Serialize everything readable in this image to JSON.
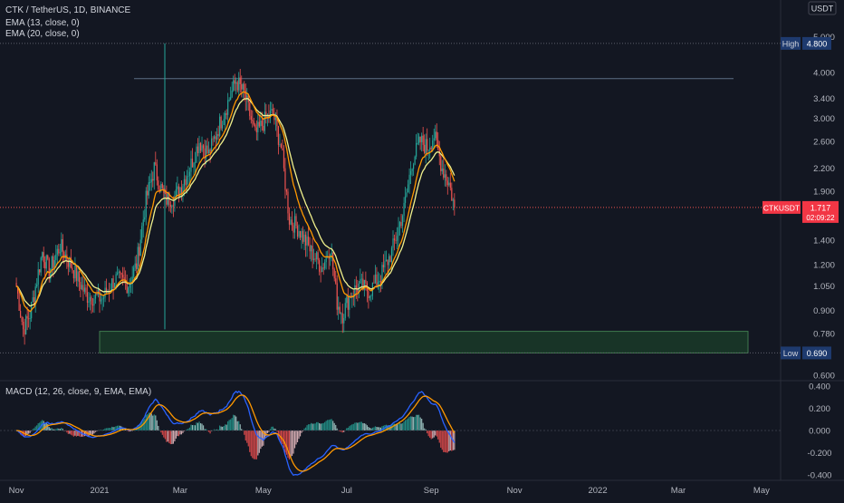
{
  "header": {
    "symbol_line": "CTK / TetherUS, 1D, BINANCE",
    "ema13_label": "EMA (13, close, 0)",
    "ema20_label": "EMA (20, close, 0)",
    "macd_label": "MACD (12, 26, close, 9, EMA, EMA)"
  },
  "price_axis": {
    "currency": "USDT",
    "ticks": [
      "6.000",
      "5.000",
      "4.000",
      "3.400",
      "3.000",
      "2.600",
      "2.200",
      "1.900",
      "1.400",
      "1.200",
      "1.050",
      "0.900",
      "0.780",
      "0.600"
    ],
    "high_label": "High",
    "high_value": "4.800",
    "low_label": "Low",
    "low_value": "0.690",
    "current_symbol": "CTKUSDT",
    "current_value": "1.717",
    "countdown": "02:09:22"
  },
  "macd_axis": {
    "ticks": [
      "0.400",
      "0.200",
      "0.000",
      "-0.200",
      "-0.400"
    ]
  },
  "time_axis": {
    "ticks": [
      "Nov",
      "2021",
      "Mar",
      "May",
      "Jul",
      "Sep",
      "Nov",
      "2022",
      "Mar",
      "May"
    ]
  },
  "colors": {
    "background": "#131722",
    "up_candle": "#26a69a",
    "down_candle": "#ef5350",
    "ema13": "#ff9800",
    "ema20": "#f0f08c",
    "macd_line": "#2962ff",
    "signal_line": "#ff9800",
    "support_zone": "#1e4d2b",
    "current_price_label": "#f23645",
    "high_low_label": "#1e3a6e"
  },
  "chart_data": [
    {
      "type": "candlestick",
      "title": "CTK / TetherUS, 1D, BINANCE",
      "y_scale": "log",
      "ylim": [
        0.58,
        6.3
      ],
      "x_range": [
        "2020-10-20",
        "2022-05-15"
      ],
      "series": [
        {
          "name": "EMA (13, close, 0)",
          "kind": "line"
        },
        {
          "name": "EMA (20, close, 0)",
          "kind": "line"
        }
      ],
      "close_anchors": [
        {
          "date": "2020-11-01",
          "close": 1.05
        },
        {
          "date": "2020-11-06",
          "close": 0.8
        },
        {
          "date": "2020-11-11",
          "close": 0.88
        },
        {
          "date": "2020-11-20",
          "close": 1.3
        },
        {
          "date": "2020-11-25",
          "close": 1.15
        },
        {
          "date": "2020-12-03",
          "close": 1.35
        },
        {
          "date": "2020-12-12",
          "close": 1.18
        },
        {
          "date": "2020-12-22",
          "close": 0.99
        },
        {
          "date": "2021-01-03",
          "close": 0.97
        },
        {
          "date": "2021-01-12",
          "close": 1.1
        },
        {
          "date": "2021-01-22",
          "close": 1.06
        },
        {
          "date": "2021-01-28",
          "close": 1.2
        },
        {
          "date": "2021-02-04",
          "close": 1.8
        },
        {
          "date": "2021-02-10",
          "close": 2.2
        },
        {
          "date": "2021-02-18",
          "close": 1.8
        },
        {
          "date": "2021-02-26",
          "close": 1.85
        },
        {
          "date": "2021-03-08",
          "close": 2.2
        },
        {
          "date": "2021-03-15",
          "close": 2.6
        },
        {
          "date": "2021-03-22",
          "close": 2.4
        },
        {
          "date": "2021-03-30",
          "close": 2.9
        },
        {
          "date": "2021-04-06",
          "close": 3.4
        },
        {
          "date": "2021-04-11",
          "close": 3.8
        },
        {
          "date": "2021-04-17",
          "close": 3.5
        },
        {
          "date": "2021-04-25",
          "close": 2.7
        },
        {
          "date": "2021-05-03",
          "close": 3.0
        },
        {
          "date": "2021-05-08",
          "close": 3.1
        },
        {
          "date": "2021-05-14",
          "close": 2.5
        },
        {
          "date": "2021-05-20",
          "close": 1.6
        },
        {
          "date": "2021-05-27",
          "close": 1.5
        },
        {
          "date": "2021-06-05",
          "close": 1.3
        },
        {
          "date": "2021-06-13",
          "close": 1.18
        },
        {
          "date": "2021-06-19",
          "close": 1.35
        },
        {
          "date": "2021-06-24",
          "close": 0.95
        },
        {
          "date": "2021-06-28",
          "close": 0.88
        },
        {
          "date": "2021-07-04",
          "close": 1.0
        },
        {
          "date": "2021-07-10",
          "close": 1.05
        },
        {
          "date": "2021-07-18",
          "close": 1.02
        },
        {
          "date": "2021-07-26",
          "close": 1.12
        },
        {
          "date": "2021-08-03",
          "close": 1.3
        },
        {
          "date": "2021-08-12",
          "close": 1.7
        },
        {
          "date": "2021-08-18",
          "close": 2.3
        },
        {
          "date": "2021-08-24",
          "close": 2.6
        },
        {
          "date": "2021-08-29",
          "close": 2.5
        },
        {
          "date": "2021-09-03",
          "close": 2.7
        },
        {
          "date": "2021-09-09",
          "close": 2.2
        },
        {
          "date": "2021-09-14",
          "close": 2.0
        },
        {
          "date": "2021-09-18",
          "close": 1.717
        }
      ],
      "annotations": {
        "high": 4.8,
        "low": 0.69,
        "resistance_line": 3.85,
        "support_zone": [
          0.69,
          0.79
        ],
        "current_price": 1.717
      }
    },
    {
      "type": "line",
      "title": "MACD (12, 26, close, 9, EMA, EMA)",
      "ylim": [
        -0.45,
        0.45
      ],
      "series": [
        {
          "name": "MACD",
          "kind": "line"
        },
        {
          "name": "Signal",
          "kind": "line"
        },
        {
          "name": "Histogram",
          "kind": "bar"
        }
      ]
    }
  ]
}
